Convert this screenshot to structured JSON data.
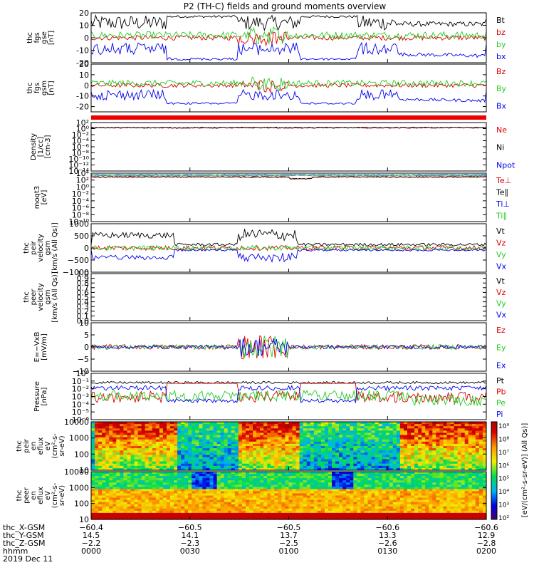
{
  "title": "P2 (TH-C) fields and ground moments overview",
  "colors": {
    "black": "#000000",
    "red": "#dd0000",
    "green": "#22cc22",
    "blue": "#0000ee",
    "frame": "#000000"
  },
  "chart_data": [
    {
      "type": "line",
      "id": "fgs_gse",
      "ylabel_lines": [
        "thc",
        "fgs",
        "gse",
        "[nT]"
      ],
      "ylim": [
        -20,
        20
      ],
      "ticks": [
        20,
        10,
        0,
        -10,
        -20
      ],
      "series": [
        {
          "name": "Bt",
          "color": "black",
          "shape": "bt"
        },
        {
          "name": "bz",
          "color": "red",
          "shape": "zero"
        },
        {
          "name": "by",
          "color": "green",
          "shape": "smallpos"
        },
        {
          "name": "bx",
          "color": "blue",
          "shape": "bx"
        }
      ]
    },
    {
      "type": "line",
      "id": "fgs_gsm",
      "ylabel_lines": [
        "thc",
        "fgs",
        "gsm",
        "[nT]"
      ],
      "ylim": [
        -25,
        20
      ],
      "ticks": [
        20,
        10,
        0,
        -10,
        -20
      ],
      "series": [
        {
          "name": "Bz",
          "color": "red",
          "shape": "zero"
        },
        {
          "name": "By",
          "color": "green",
          "shape": "smallpos"
        },
        {
          "name": "Bx",
          "color": "blue",
          "shape": "bx"
        }
      ]
    },
    {
      "type": "line",
      "id": "density",
      "ylabel_lines": [
        "Density",
        "[1/cc]",
        "[cm-3]"
      ],
      "log": true,
      "ylim": [
        -14,
        2
      ],
      "ticks": [
        2,
        0,
        -2,
        -4,
        -6,
        -8,
        -10,
        -12,
        -14
      ],
      "tick_labels": [
        "10²",
        "10⁰",
        "10⁻²",
        "10⁻⁴",
        "10⁻⁶",
        "10⁻⁸",
        "10⁻¹⁰",
        "10⁻¹²",
        "10⁻¹⁴"
      ],
      "series": [
        {
          "name": "Ne",
          "color": "red",
          "shape": "dens"
        },
        {
          "name": "Ni",
          "color": "black",
          "shape": "dens"
        },
        {
          "name": "Npot",
          "color": "blue",
          "shape": "none"
        }
      ]
    },
    {
      "type": "line",
      "id": "temperature",
      "ylabel_lines": [
        "moqt3",
        "[eV]"
      ],
      "log": true,
      "ylim": [
        -10,
        4
      ],
      "ticks": [
        4,
        2,
        0,
        -2,
        -4,
        -6,
        -8,
        -10
      ],
      "tick_labels": [
        "10⁴",
        "10²",
        "10⁰",
        "10⁻²",
        "10⁻⁴",
        "10⁻⁶",
        "10⁻⁸",
        "10⁻¹⁰"
      ],
      "series": [
        {
          "name": "Te⊥",
          "color": "red",
          "shape": "temp3"
        },
        {
          "name": "Te∥",
          "color": "black",
          "shape": "temp3"
        },
        {
          "name": "Ti⊥",
          "color": "blue",
          "shape": "temp35"
        },
        {
          "name": "Ti∥",
          "color": "green",
          "shape": "temp34"
        }
      ]
    },
    {
      "type": "line",
      "id": "peir_velocity",
      "ylabel_lines": [
        "thc",
        "peir",
        "velocity",
        "gsm",
        "[km/s (All Qs)]"
      ],
      "ylim": [
        -1000,
        1000
      ],
      "ticks": [
        1000,
        500,
        0,
        -500,
        -1000
      ],
      "tick_labels": [
        "1000",
        "500",
        "0",
        "−500",
        "−1000"
      ],
      "series": [
        {
          "name": "Vt",
          "color": "black",
          "shape": "vt"
        },
        {
          "name": "Vz",
          "color": "red",
          "shape": "vsmall"
        },
        {
          "name": "Vy",
          "color": "green",
          "shape": "vsmall"
        },
        {
          "name": "Vx",
          "color": "blue",
          "shape": "vx"
        }
      ]
    },
    {
      "type": "line",
      "id": "peer_velocity",
      "ylabel_lines": [
        "thc",
        "peer",
        "velocity",
        "gsm",
        "[km/s (All Qs)]"
      ],
      "ylim": [
        0,
        1
      ],
      "ticks": [
        1,
        0.9,
        0.8,
        0.7,
        0.6,
        0.5,
        0.4,
        0.3,
        0.2,
        0.1,
        0
      ],
      "tick_labels": [
        "1.0",
        "0.9",
        "0.8",
        "0.7",
        "0.6",
        "0.5",
        "0.4",
        "0.3",
        "0.2",
        "0.1",
        "0.0"
      ],
      "series": [
        {
          "name": "Vt",
          "color": "black",
          "shape": "none"
        },
        {
          "name": "Vz",
          "color": "red",
          "shape": "none"
        },
        {
          "name": "Vy",
          "color": "green",
          "shape": "none"
        },
        {
          "name": "Vx",
          "color": "blue",
          "shape": "none"
        }
      ]
    },
    {
      "type": "line",
      "id": "efield",
      "ylabel_lines": [
        "E=−VxB",
        "[mV/m]"
      ],
      "ylim": [
        -10,
        10
      ],
      "ticks": [
        10,
        5,
        0,
        -5,
        -10
      ],
      "tick_labels": [
        "10",
        "5",
        "0",
        "−5",
        "−10"
      ],
      "series": [
        {
          "name": "Ez",
          "color": "red",
          "shape": "efld"
        },
        {
          "name": "Ey",
          "color": "green",
          "shape": "efld"
        },
        {
          "name": "Ex",
          "color": "blue",
          "shape": "efldx"
        }
      ]
    },
    {
      "type": "line",
      "id": "pressure",
      "ylabel_lines": [
        "Pressure",
        "[nPa]"
      ],
      "log": true,
      "ylim": [
        -6,
        0
      ],
      "ticks": [
        0,
        -1,
        -2,
        -3,
        -4,
        -5,
        -6
      ],
      "tick_labels": [
        "10⁰",
        "10⁻¹",
        "10⁻²",
        "10⁻³",
        "10⁻⁴",
        "10⁻⁵",
        "10⁻⁶"
      ],
      "series": [
        {
          "name": "Pt",
          "color": "black",
          "shape": "pt"
        },
        {
          "name": "Pb",
          "color": "red",
          "shape": "pb"
        },
        {
          "name": "Pe",
          "color": "green",
          "shape": "pe"
        },
        {
          "name": "Pi",
          "color": "blue",
          "shape": "pi"
        }
      ]
    },
    {
      "type": "heatmap",
      "id": "peir_eflux",
      "ylabel_lines": [
        "thc",
        "peir",
        "en",
        "eflux",
        "eV",
        "(cm²-s-",
        "sr-eV)"
      ],
      "ylim": [
        10,
        10000
      ],
      "ticks": [
        10000,
        1000,
        100,
        10
      ],
      "tick_labels": [
        "10000",
        "1000",
        "100",
        "10"
      ]
    },
    {
      "type": "heatmap",
      "id": "peer_eflux",
      "ylabel_lines": [
        "thc",
        "peer",
        "en",
        "eflux",
        "eV",
        "(cm²-s-",
        "sr-eV)"
      ],
      "ylim": [
        10,
        10000
      ],
      "ticks": [
        10000,
        1000,
        100,
        10
      ],
      "tick_labels": [
        "10000",
        "1000",
        "100",
        "10"
      ]
    }
  ],
  "colorbar": {
    "label": "[eV/(cm²-s-sr-eV)] (All Qs)]",
    "tick_labels": [
      "10⁹",
      "10⁸",
      "10⁷",
      "10⁶",
      "10⁵",
      "10⁴",
      "10³",
      "10²"
    ]
  },
  "xaxis": {
    "rows": [
      {
        "name": "thc_X-GSM",
        "values": [
          "−60.4",
          "−60.5",
          "−60.5",
          "−60.6",
          "−60.6"
        ]
      },
      {
        "name": "thc_Y-GSM",
        "values": [
          "14.5",
          "14.1",
          "13.7",
          "13.3",
          "12.9"
        ]
      },
      {
        "name": "thc_Z-GSM",
        "values": [
          "−2.2",
          "−2.3",
          "−2.5",
          "−2.6",
          "−2.8"
        ]
      },
      {
        "name": "hhmm",
        "values": [
          "0000",
          "0030",
          "0100",
          "0130",
          "0200"
        ]
      }
    ],
    "date": "2019 Dec 11"
  }
}
